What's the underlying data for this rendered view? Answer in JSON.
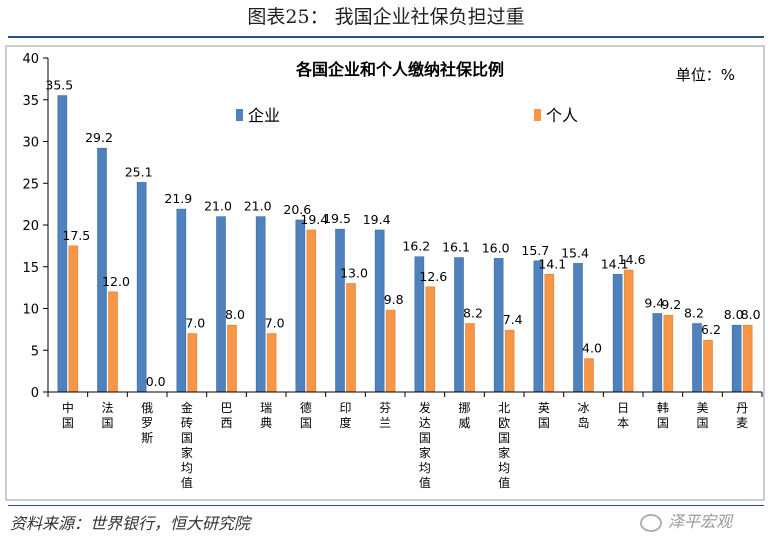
{
  "figure_title": "图表25：     我国企业社保负担过重",
  "source_note": "资料来源：世界银行，恒大研究院",
  "watermark": "泽平宏观",
  "chart_data": {
    "type": "bar",
    "title": "各国企业和个人缴纳社保比例",
    "unit_label": "单位：%",
    "categories": [
      "中国",
      "法国",
      "俄罗斯",
      "金砖国家均值",
      "巴西",
      "瑞典",
      "德国",
      "印度",
      "芬兰",
      "发达国家均值",
      "挪威",
      "北欧国家均值",
      "英国",
      "冰岛",
      "日本",
      "韩国",
      "美国",
      "丹麦"
    ],
    "series": [
      {
        "name": "企业",
        "color": "#4f81bd",
        "values": [
          35.5,
          29.2,
          25.1,
          21.9,
          21.0,
          21.0,
          20.6,
          19.5,
          19.4,
          16.2,
          16.1,
          16.0,
          15.7,
          15.4,
          14.1,
          9.4,
          8.2,
          8.0
        ]
      },
      {
        "name": "个人",
        "color": "#f79646",
        "values": [
          17.5,
          12.0,
          0.0,
          7.0,
          8.0,
          7.0,
          19.4,
          13.0,
          9.8,
          12.6,
          8.2,
          7.4,
          14.1,
          4.0,
          14.6,
          9.2,
          6.2,
          8.0
        ]
      }
    ],
    "value_labels": [
      [
        "35.5",
        "29.2",
        "25.1",
        "21.9",
        "21.0",
        "21.0",
        "20.6",
        "19.5",
        "19.4",
        "16.2",
        "16.1",
        "16.0",
        "15.7",
        "15.4",
        "14.1",
        "9.4",
        "8.2",
        "8.0"
      ],
      [
        "17.5",
        "12.0",
        "0.0",
        "7.0",
        "8.0",
        "7.0",
        "19.4",
        "13.0",
        "9.8",
        "12.6",
        "8.2",
        "7.4",
        "14.1",
        "4.0",
        "14.6",
        "9.2",
        "6.2",
        "8.0"
      ]
    ],
    "ylim": [
      0,
      40
    ],
    "yticks": [
      0,
      5,
      10,
      15,
      20,
      25,
      30,
      35,
      40
    ],
    "legend_position": "top-left",
    "grid": false
  }
}
